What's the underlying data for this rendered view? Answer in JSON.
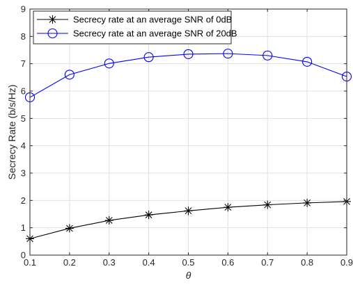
{
  "chart_data": {
    "type": "line",
    "title": "",
    "xlabel": "θ",
    "ylabel": "Secrecy Rate (b/s/Hz)",
    "x": [
      0.1,
      0.2,
      0.3,
      0.4,
      0.5,
      0.6,
      0.7,
      0.8,
      0.9
    ],
    "xlim": [
      0.1,
      0.9
    ],
    "ylim": [
      0,
      9
    ],
    "xticks": [
      "0.1",
      "0.2",
      "0.3",
      "0.4",
      "0.5",
      "0.6",
      "0.7",
      "0.8",
      "0.9"
    ],
    "yticks": [
      "0",
      "1",
      "2",
      "3",
      "4",
      "5",
      "6",
      "7",
      "8",
      "9"
    ],
    "grid": true,
    "legend_position": "top-left",
    "series": [
      {
        "name": "Secrecy rate at an average SNR of 0dB",
        "values": [
          0.6,
          0.98,
          1.27,
          1.47,
          1.62,
          1.75,
          1.84,
          1.91,
          1.96
        ],
        "color": "#000000",
        "marker": "asterisk"
      },
      {
        "name": "Secrecy rate at an average SNR of 20dB",
        "values": [
          5.77,
          6.6,
          7.01,
          7.24,
          7.35,
          7.37,
          7.3,
          7.07,
          6.53
        ],
        "color": "#0000ff",
        "marker": "circle"
      }
    ]
  }
}
